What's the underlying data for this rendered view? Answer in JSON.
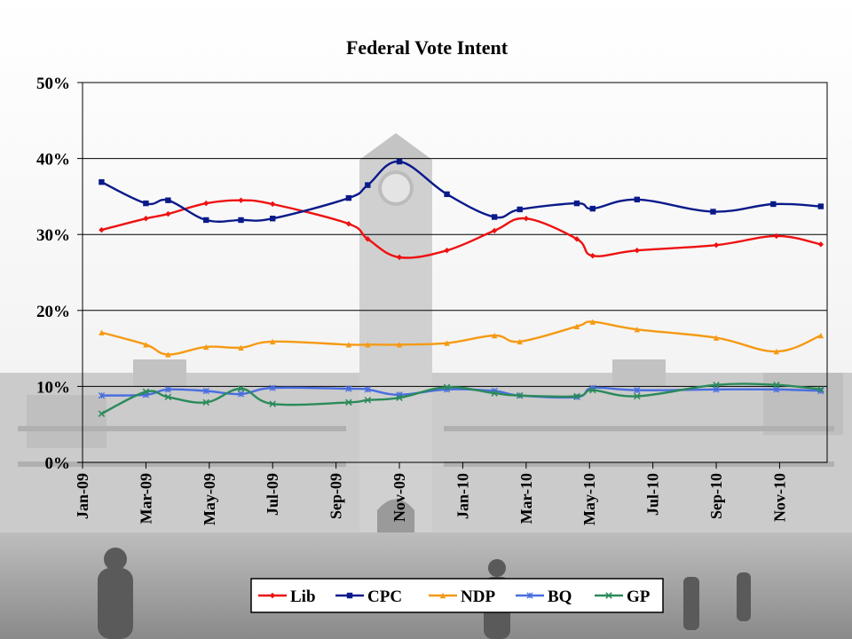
{
  "chart_data": {
    "type": "line",
    "title": "Federal Vote Intent",
    "xlabel": "",
    "ylabel": "",
    "ylim": [
      0,
      50
    ],
    "y_ticks": [
      "0%",
      "10%",
      "20%",
      "30%",
      "40%",
      "50%"
    ],
    "x_ticks": [
      "Jan-09",
      "Mar-09",
      "May-09",
      "Jul-09",
      "Sep-09",
      "Nov-09",
      "Jan-10",
      "Mar-10",
      "May-10",
      "Jul-10",
      "Sep-10",
      "Nov-10"
    ],
    "x_tick_months": [
      0,
      2,
      4,
      6,
      8,
      10,
      12,
      14,
      16,
      18,
      20,
      22
    ],
    "x_range_months": [
      0,
      23.5
    ],
    "legend_position": "bottom",
    "series": [
      {
        "name": "Lib",
        "color": "#ee1111",
        "marker": "diamond",
        "x": [
          0.6,
          2.0,
          2.7,
          3.9,
          5.0,
          6.0,
          8.4,
          9.0,
          10.0,
          11.5,
          13.0,
          14.0,
          15.6,
          16.1,
          17.5,
          20.0,
          21.9,
          23.3
        ],
        "y": [
          30.6,
          32.1,
          32.7,
          34.1,
          34.5,
          34.0,
          31.4,
          29.4,
          27.0,
          27.9,
          30.5,
          32.1,
          29.4,
          27.2,
          27.9,
          28.6,
          29.8,
          28.7
        ]
      },
      {
        "name": "CPC",
        "color": "#0a1a8a",
        "marker": "square",
        "x": [
          0.6,
          2.0,
          2.7,
          3.9,
          5.0,
          6.0,
          8.4,
          9.0,
          10.0,
          11.5,
          13.0,
          13.8,
          15.6,
          16.1,
          17.5,
          19.9,
          21.8,
          23.3
        ],
        "y": [
          36.9,
          34.1,
          34.5,
          31.9,
          31.9,
          32.1,
          34.8,
          36.5,
          39.6,
          35.3,
          32.3,
          33.3,
          34.1,
          33.4,
          34.6,
          33.0,
          34.0,
          33.7
        ]
      },
      {
        "name": "NDP",
        "color": "#f59a14",
        "marker": "triangle",
        "x": [
          0.6,
          2.0,
          2.7,
          3.9,
          5.0,
          6.0,
          8.4,
          9.0,
          10.0,
          11.5,
          13.0,
          13.8,
          15.6,
          16.1,
          17.5,
          20.0,
          21.9,
          23.3
        ],
        "y": [
          17.1,
          15.5,
          14.2,
          15.2,
          15.1,
          15.9,
          15.5,
          15.5,
          15.5,
          15.7,
          16.7,
          15.9,
          17.9,
          18.5,
          17.5,
          16.4,
          14.6,
          16.7
        ]
      },
      {
        "name": "BQ",
        "color": "#4a6ee0",
        "marker": "star",
        "x": [
          0.6,
          2.0,
          2.7,
          3.9,
          5.0,
          6.0,
          8.4,
          9.0,
          10.0,
          11.5,
          13.0,
          13.8,
          15.6,
          16.1,
          17.5,
          20.0,
          21.9,
          23.3
        ],
        "y": [
          8.8,
          8.9,
          9.6,
          9.4,
          9.0,
          9.8,
          9.7,
          9.6,
          8.9,
          9.6,
          9.4,
          8.8,
          8.6,
          9.8,
          9.5,
          9.6,
          9.6,
          9.4
        ]
      },
      {
        "name": "GP",
        "color": "#2a8a5a",
        "marker": "x",
        "x": [
          0.6,
          2.0,
          2.7,
          3.9,
          5.0,
          6.0,
          8.4,
          9.0,
          10.0,
          11.5,
          13.0,
          13.8,
          15.6,
          16.1,
          17.5,
          20.0,
          21.9,
          23.3
        ],
        "y": [
          6.4,
          9.3,
          8.6,
          7.9,
          9.7,
          7.7,
          7.9,
          8.2,
          8.5,
          9.9,
          9.1,
          8.8,
          8.7,
          9.5,
          8.7,
          10.2,
          10.2,
          9.6
        ]
      }
    ]
  }
}
